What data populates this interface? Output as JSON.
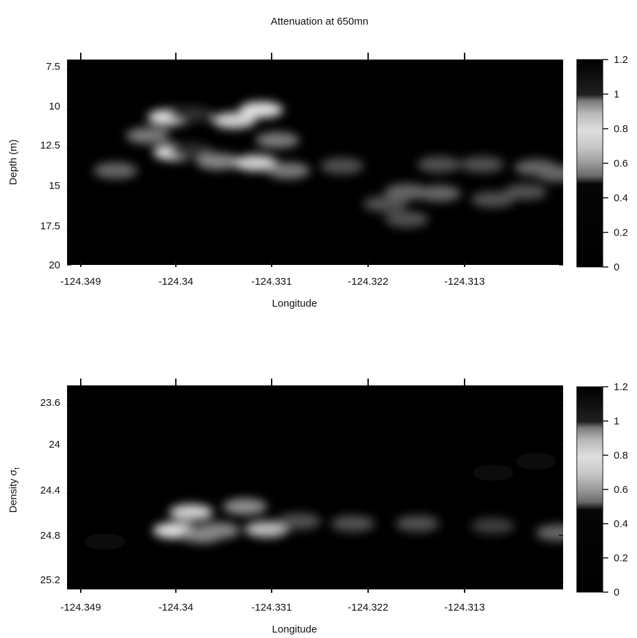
{
  "figure": {
    "title": "Attenuation at 650mn"
  },
  "chart_data": [
    {
      "type": "heatmap",
      "title": "Attenuation at 650mn",
      "xlabel": "Longitude",
      "ylabel": "Depth (m)",
      "x_ticks": [
        "-124.349",
        "-124.34",
        "-124.331",
        "-124.322",
        "-124.313"
      ],
      "y_ticks": [
        "7.5",
        "10",
        "12.5",
        "15",
        "17.5",
        "20"
      ],
      "xlim": [
        -124.3495,
        -124.3035
      ],
      "ylim": [
        20,
        6.5
      ],
      "colorbar": {
        "ticks": [
          "0",
          "0.2",
          "0.4",
          "0.6",
          "0.8",
          "1",
          "1.2"
        ],
        "range": [
          0,
          1.2
        ]
      },
      "features": [
        {
          "x": -124.34,
          "y": 10.3,
          "value": 0.85
        },
        {
          "x": -124.338,
          "y": 10.1,
          "value": 1.05
        },
        {
          "x": -124.334,
          "y": 10.5,
          "value": 0.75
        },
        {
          "x": -124.3315,
          "y": 9.8,
          "value": 0.8
        },
        {
          "x": -124.342,
          "y": 11.5,
          "value": 0.55
        },
        {
          "x": -124.3395,
          "y": 12.6,
          "value": 0.85
        },
        {
          "x": -124.338,
          "y": 12.5,
          "value": 1.05
        },
        {
          "x": -124.3355,
          "y": 13.2,
          "value": 1.0
        },
        {
          "x": -124.332,
          "y": 13.3,
          "value": 0.75
        },
        {
          "x": -124.329,
          "y": 13.8,
          "value": 0.55
        },
        {
          "x": -124.345,
          "y": 13.8,
          "value": 0.5
        },
        {
          "x": -124.33,
          "y": 11.8,
          "value": 0.55
        },
        {
          "x": -124.324,
          "y": 13.5,
          "value": 0.45
        },
        {
          "x": -124.318,
          "y": 15.2,
          "value": 0.5
        },
        {
          "x": -124.315,
          "y": 15.3,
          "value": 0.5
        },
        {
          "x": -124.31,
          "y": 15.7,
          "value": 0.45
        },
        {
          "x": -124.307,
          "y": 15.2,
          "value": 0.45
        },
        {
          "x": -124.32,
          "y": 16.0,
          "value": 0.45
        },
        {
          "x": -124.318,
          "y": 17.0,
          "value": 0.45
        },
        {
          "x": -124.315,
          "y": 13.4,
          "value": 0.45
        },
        {
          "x": -124.311,
          "y": 13.4,
          "value": 0.45
        },
        {
          "x": -124.306,
          "y": 13.6,
          "value": 0.5
        },
        {
          "x": -124.304,
          "y": 14.0,
          "value": 0.5
        }
      ]
    },
    {
      "type": "heatmap",
      "xlabel": "Longitude",
      "ylabel": "Density σ",
      "ylabel_subscript": "t",
      "x_ticks": [
        "-124.349",
        "-124.34",
        "-124.331",
        "-124.322",
        "-124.313"
      ],
      "y_ticks": [
        "23.6",
        "24",
        "24.4",
        "24.8",
        "25.2"
      ],
      "xlim": [
        -124.3495,
        -124.3035
      ],
      "ylim": [
        25.28,
        23.48
      ],
      "colorbar": {
        "ticks": [
          "0",
          "0.2",
          "0.4",
          "0.6",
          "0.8",
          "1",
          "1.2"
        ],
        "range": [
          0,
          1.2
        ]
      },
      "features": [
        {
          "x": -124.3395,
          "y": 24.76,
          "value": 0.85
        },
        {
          "x": -124.337,
          "y": 24.8,
          "value": 1.0
        },
        {
          "x": -124.3355,
          "y": 24.76,
          "value": 1.0
        },
        {
          "x": -124.338,
          "y": 24.6,
          "value": 0.75
        },
        {
          "x": -124.333,
          "y": 24.55,
          "value": 0.6
        },
        {
          "x": -124.331,
          "y": 24.75,
          "value": 0.7
        },
        {
          "x": -124.328,
          "y": 24.68,
          "value": 0.45
        },
        {
          "x": -124.323,
          "y": 24.7,
          "value": 0.45
        },
        {
          "x": -124.317,
          "y": 24.7,
          "value": 0.45
        },
        {
          "x": -124.31,
          "y": 24.72,
          "value": 0.4
        },
        {
          "x": -124.304,
          "y": 24.78,
          "value": 0.5
        },
        {
          "x": -124.31,
          "y": 24.25,
          "value": 0.3
        },
        {
          "x": -124.306,
          "y": 24.15,
          "value": 0.3
        },
        {
          "x": -124.346,
          "y": 24.86,
          "value": 0.35
        }
      ]
    }
  ]
}
